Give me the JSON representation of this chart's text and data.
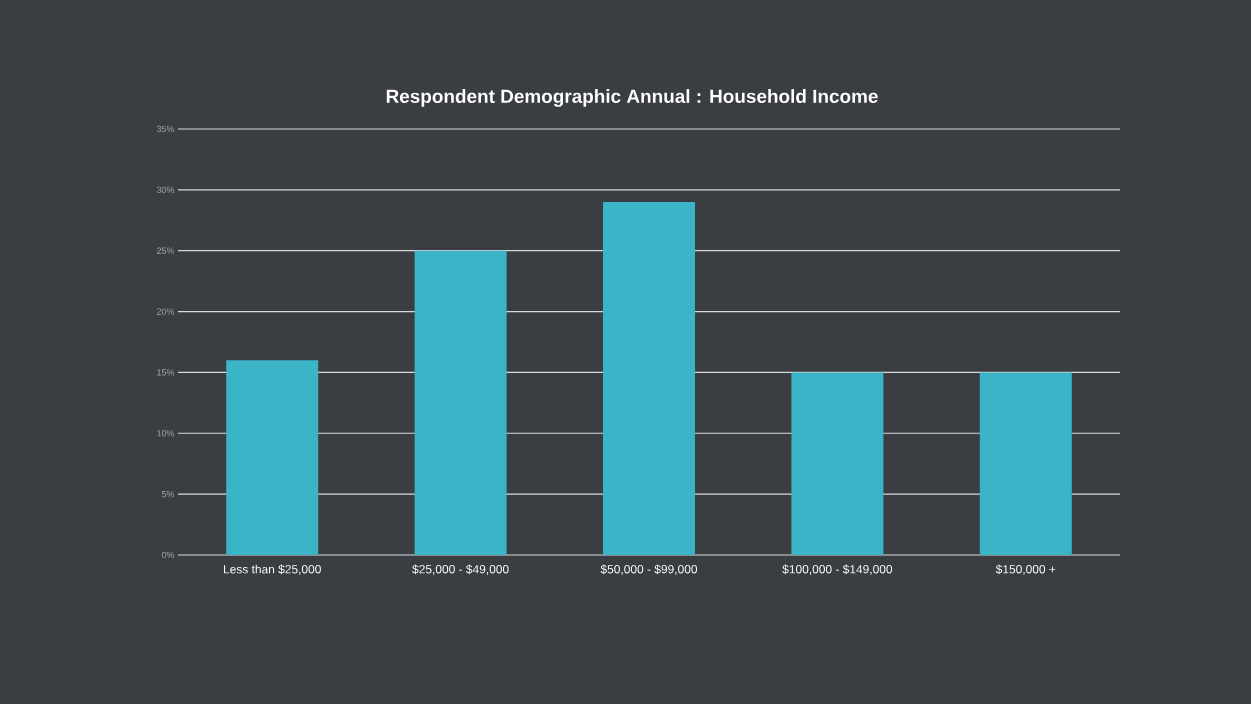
{
  "chart_data": {
    "type": "bar",
    "title": "Respondent Demographic Annual : Household Income",
    "categories": [
      "Less than $25,000",
      "$25,000 - $49,000",
      "$50,000 - $99,000",
      "$100,000 - $149,000",
      "$150,000 +"
    ],
    "values": [
      16,
      25,
      29,
      15,
      15
    ],
    "color": "#3ab4c6",
    "ylim": [
      0,
      35
    ],
    "yticks": [
      {
        "value": 0,
        "label": "0%"
      },
      {
        "value": 5,
        "label": "5%"
      },
      {
        "value": 10,
        "label": "10%"
      },
      {
        "value": 15,
        "label": "15%"
      },
      {
        "value": 20,
        "label": "20%"
      },
      {
        "value": 25,
        "label": "25%"
      },
      {
        "value": 30,
        "label": "30%"
      },
      {
        "value": 35,
        "label": "35%"
      }
    ],
    "grid": "y"
  }
}
